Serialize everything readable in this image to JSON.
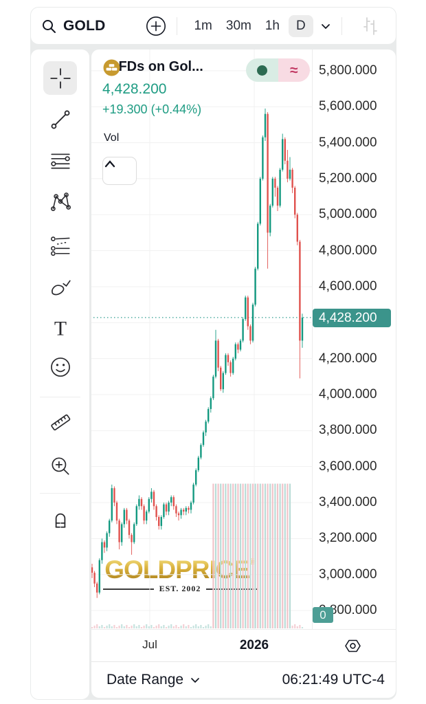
{
  "toolbar": {
    "symbol": "GOLD",
    "timeframes": [
      "1m",
      "30m",
      "1h",
      "D"
    ],
    "selected_timeframe": "D"
  },
  "sidebar": {
    "selected_tool": "crosshair",
    "tools": [
      "crosshair",
      "trend-line",
      "fib-retracement",
      "xabcd-pattern",
      "parallel-channel",
      "brush",
      "text",
      "emoji",
      "ruler",
      "zoom-in",
      "magnet"
    ]
  },
  "legend": {
    "symbol": "CFDs on Gol...",
    "price": "4,428.200",
    "change": "+19.300 (+0.44%)",
    "volume_label": "Vol",
    "toggle": {
      "left_icon": "dot",
      "right_icon": "approx",
      "approx_glyph": "≈"
    }
  },
  "watermark": {
    "brand": "GOLDPRICE",
    "registered": "®",
    "est": "EST. 2002"
  },
  "bottom_bar": {
    "date_range_label": "Date Range",
    "time": "06:21:49 UTC-4"
  },
  "colors": {
    "up": "#139980",
    "down": "#e0514d",
    "vol_up": "#b9dcd7",
    "vol_down": "#f1c4ca",
    "accent_teal": "#2f9e8f",
    "badge_teal": "#3b948b",
    "price_text": "#1e9c83",
    "gold": "#c79a2f",
    "grid": "#f1f1f1"
  },
  "chart_data": {
    "type": "candlestick",
    "title": "CFDs on Gol...",
    "current_price": 4428.2,
    "current_price_label": "4,428.200",
    "price_at_top": 5918,
    "price_at_bottom": 2697,
    "y_ticks": [
      {
        "price": 5800,
        "label": "5,800.000"
      },
      {
        "price": 5600,
        "label": "5,600.000"
      },
      {
        "price": 5400,
        "label": "5,400.000"
      },
      {
        "price": 5200,
        "label": "5,200.000"
      },
      {
        "price": 5000,
        "label": "5,000.000"
      },
      {
        "price": 4800,
        "label": "4,800.000"
      },
      {
        "price": 4600,
        "label": "4,600.000"
      },
      {
        "price": 4200,
        "label": "4,200.000"
      },
      {
        "price": 4000,
        "label": "4,000.000"
      },
      {
        "price": 3800,
        "label": "3,800.000"
      },
      {
        "price": 3600,
        "label": "3,600.000"
      },
      {
        "price": 3400,
        "label": "3,400.000"
      },
      {
        "price": 3200,
        "label": "3,200.000"
      },
      {
        "price": 3000,
        "label": "3,000.000"
      },
      {
        "price": 2800,
        "label": "2,800.000"
      }
    ],
    "gridline_prices": [
      5800,
      5600,
      5400,
      5200,
      5000,
      4800,
      4600,
      4400,
      4200,
      4000,
      3800,
      3600,
      3400,
      3200,
      3000,
      2800
    ],
    "x_labels": [
      {
        "label": "Jul",
        "x": 85,
        "bold": false
      },
      {
        "label": "2026",
        "x": 237,
        "bold": true
      }
    ],
    "volume": {
      "tall_start": 49,
      "tall_end": 80,
      "stripe_top_price": 3505,
      "zero_label": "0"
    },
    "candles": [
      [
        3040,
        3060,
        2980,
        3010
      ],
      [
        3010,
        3020,
        2930,
        2950
      ],
      [
        2950,
        2960,
        2870,
        2900
      ],
      [
        2900,
        3090,
        2890,
        3080
      ],
      [
        3080,
        3200,
        3060,
        3180
      ],
      [
        3180,
        3190,
        3120,
        3150
      ],
      [
        3150,
        3240,
        3130,
        3230
      ],
      [
        3230,
        3310,
        3210,
        3300
      ],
      [
        3300,
        3500,
        3290,
        3480
      ],
      [
        3480,
        3490,
        3380,
        3400
      ],
      [
        3400,
        3410,
        3280,
        3300
      ],
      [
        3300,
        3310,
        3140,
        3180
      ],
      [
        3180,
        3290,
        3160,
        3280
      ],
      [
        3280,
        3370,
        3260,
        3360
      ],
      [
        3360,
        3370,
        3280,
        3300
      ],
      [
        3300,
        3310,
        3200,
        3220
      ],
      [
        3220,
        3230,
        3110,
        3180
      ],
      [
        3180,
        3290,
        3170,
        3280
      ],
      [
        3280,
        3390,
        3270,
        3380
      ],
      [
        3380,
        3440,
        3360,
        3420
      ],
      [
        3420,
        3430,
        3360,
        3380
      ],
      [
        3380,
        3390,
        3280,
        3300
      ],
      [
        3300,
        3360,
        3280,
        3350
      ],
      [
        3350,
        3430,
        3340,
        3420
      ],
      [
        3420,
        3480,
        3400,
        3460
      ],
      [
        3460,
        3470,
        3360,
        3380
      ],
      [
        3380,
        3390,
        3300,
        3320
      ],
      [
        3320,
        3330,
        3250,
        3270
      ],
      [
        3270,
        3330,
        3250,
        3320
      ],
      [
        3320,
        3400,
        3310,
        3390
      ],
      [
        3390,
        3400,
        3330,
        3350
      ],
      [
        3350,
        3410,
        3330,
        3400
      ],
      [
        3400,
        3440,
        3380,
        3430
      ],
      [
        3430,
        3440,
        3360,
        3380
      ],
      [
        3380,
        3390,
        3320,
        3340
      ],
      [
        3340,
        3350,
        3300,
        3330
      ],
      [
        3330,
        3370,
        3310,
        3360
      ],
      [
        3360,
        3370,
        3330,
        3350
      ],
      [
        3350,
        3380,
        3330,
        3370
      ],
      [
        3370,
        3380,
        3340,
        3360
      ],
      [
        3360,
        3410,
        3340,
        3400
      ],
      [
        3400,
        3510,
        3390,
        3500
      ],
      [
        3500,
        3590,
        3490,
        3580
      ],
      [
        3580,
        3660,
        3570,
        3650
      ],
      [
        3650,
        3730,
        3640,
        3720
      ],
      [
        3720,
        3800,
        3710,
        3790
      ],
      [
        3790,
        3860,
        3770,
        3850
      ],
      [
        3850,
        3930,
        3840,
        3920
      ],
      [
        3920,
        3990,
        3900,
        3980
      ],
      [
        3980,
        4110,
        3970,
        4100
      ],
      [
        4100,
        4360,
        4090,
        4300
      ],
      [
        4300,
        4310,
        4130,
        4150
      ],
      [
        4150,
        4160,
        4020,
        4030
      ],
      [
        4030,
        4130,
        4010,
        4120
      ],
      [
        4120,
        4230,
        4110,
        4220
      ],
      [
        4220,
        4230,
        4160,
        4180
      ],
      [
        4180,
        4190,
        4100,
        4120
      ],
      [
        4120,
        4210,
        4110,
        4200
      ],
      [
        4200,
        4290,
        4190,
        4280
      ],
      [
        4280,
        4290,
        4230,
        4250
      ],
      [
        4250,
        4310,
        4240,
        4300
      ],
      [
        4300,
        4430,
        4290,
        4420
      ],
      [
        4420,
        4550,
        4410,
        4540
      ],
      [
        4540,
        4550,
        4360,
        4380
      ],
      [
        4380,
        4390,
        4280,
        4300
      ],
      [
        4300,
        4510,
        4290,
        4500
      ],
      [
        4500,
        4710,
        4490,
        4700
      ],
      [
        4700,
        4960,
        4690,
        4950
      ],
      [
        4950,
        5210,
        4940,
        5200
      ],
      [
        5200,
        5440,
        5190,
        5430
      ],
      [
        5430,
        5590,
        5410,
        5560
      ],
      [
        5560,
        5570,
        4700,
        4900
      ],
      [
        4900,
        5060,
        4880,
        5050
      ],
      [
        5050,
        5210,
        5040,
        5200
      ],
      [
        5200,
        5210,
        5100,
        5150
      ],
      [
        5150,
        5160,
        5020,
        5050
      ],
      [
        5050,
        5260,
        5040,
        5250
      ],
      [
        5250,
        5450,
        5240,
        5420
      ],
      [
        5420,
        5430,
        5280,
        5300
      ],
      [
        5300,
        5360,
        5180,
        5200
      ],
      [
        5200,
        5320,
        5190,
        5250
      ],
      [
        5250,
        5260,
        5120,
        5150
      ],
      [
        5150,
        5160,
        4980,
        5000
      ],
      [
        5000,
        5010,
        4830,
        4850
      ],
      [
        4850,
        4860,
        4090,
        4300
      ],
      [
        4300,
        4450,
        4260,
        4428.2
      ]
    ]
  }
}
